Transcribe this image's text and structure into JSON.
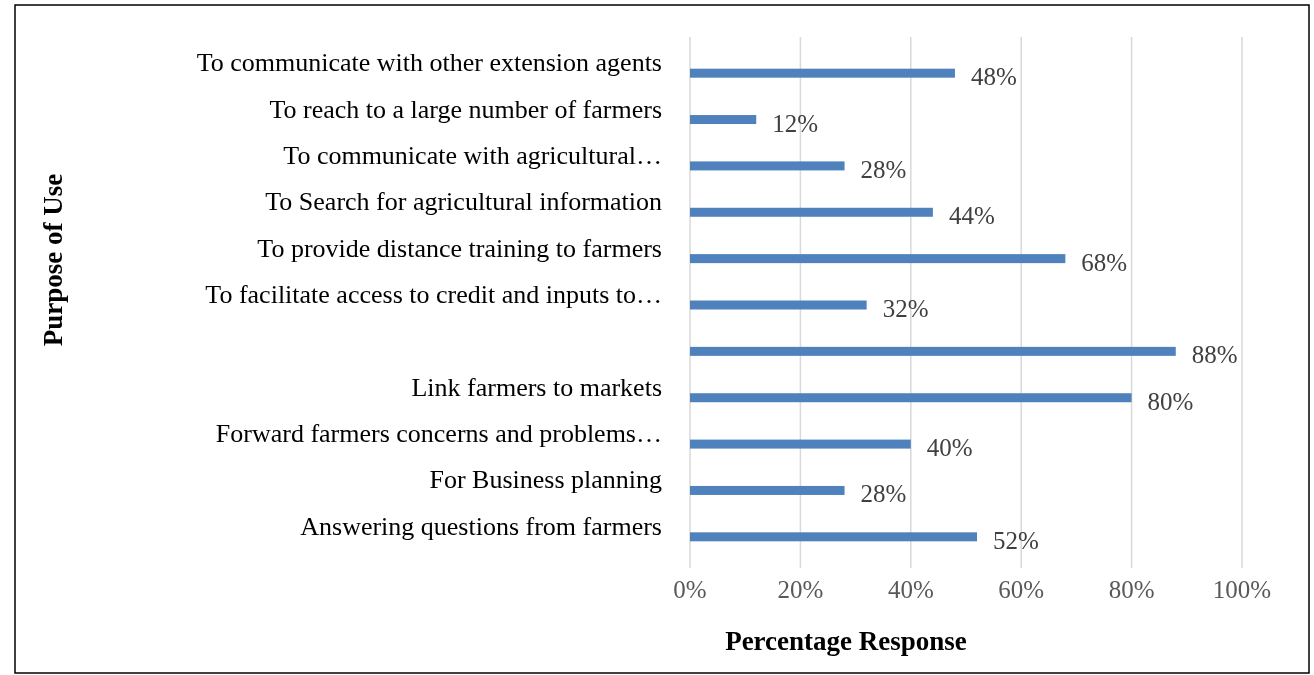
{
  "chart_data": {
    "type": "bar",
    "orientation": "horizontal",
    "xlabel": "Percentage Response",
    "ylabel": "Purpose of Use",
    "categories": [
      "To communicate with other extension agents",
      "To reach to a large number of farmers",
      "To communicate with agricultural…",
      "To Search for agricultural information",
      "To provide distance training to farmers",
      "To facilitate access to credit and inputs to…",
      null,
      "Link farmers to markets",
      "Forward farmers concerns and problems…",
      "For Business planning",
      "Answering questions from farmers"
    ],
    "values": [
      48,
      12,
      28,
      44,
      68,
      32,
      88,
      80,
      40,
      28,
      52
    ],
    "value_labels": [
      "48%",
      "12%",
      "28%",
      "44%",
      "68%",
      "32%",
      "88%",
      "80%",
      "40%",
      "28%",
      "52%"
    ],
    "color": "#4f81bd",
    "xlim": [
      0,
      100
    ],
    "xticks": [
      {
        "value": 0,
        "label": "0%"
      },
      {
        "value": 20,
        "label": "20%"
      },
      {
        "value": 40,
        "label": "40%"
      },
      {
        "value": 60,
        "label": "60%"
      },
      {
        "value": 80,
        "label": "80%"
      },
      {
        "value": 100,
        "label": "100%"
      }
    ],
    "grid": "x"
  }
}
